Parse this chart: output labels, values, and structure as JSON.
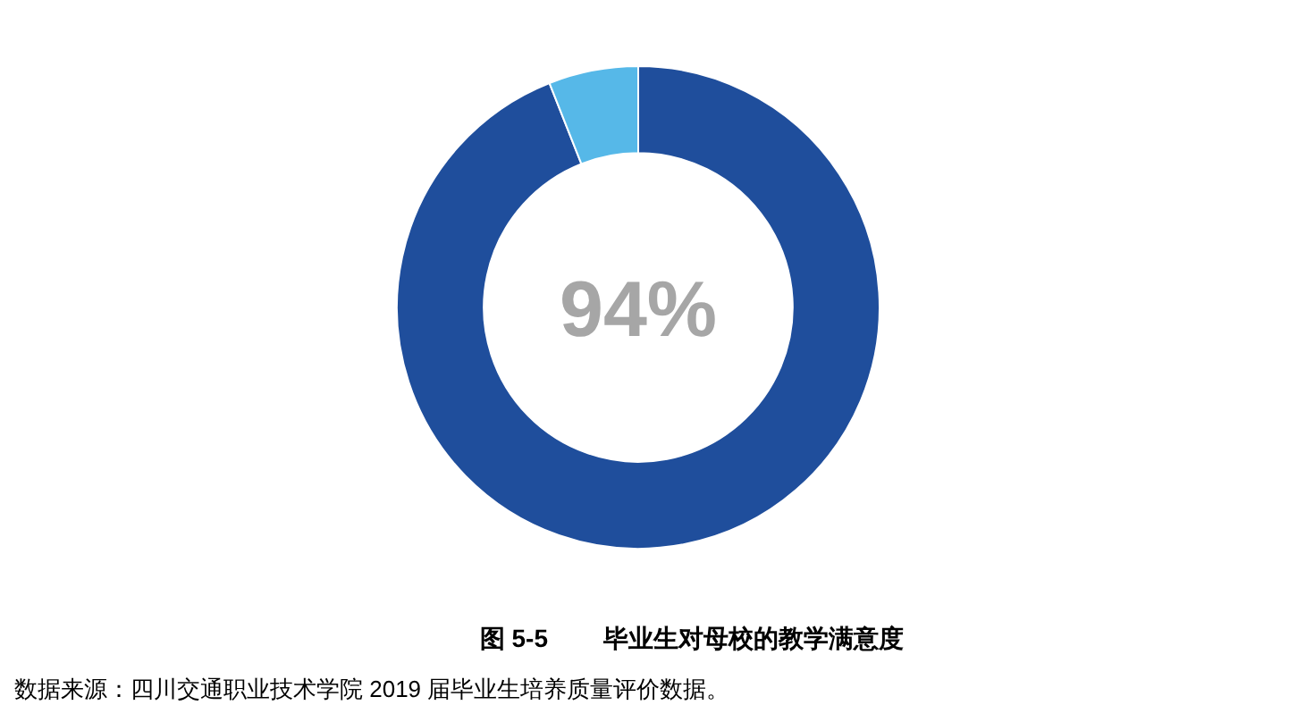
{
  "chart_data": {
    "type": "donut",
    "title": "图 5-5        毕业生对母校的教学满意度",
    "categories": [
      null,
      null
    ],
    "values": [
      94,
      6
    ],
    "colors": [
      "#1f4e9c",
      "#56b8e8"
    ],
    "value_labels": [
      "94%",
      null
    ],
    "annotations": [
      "数据来源：四川交通职业技术学院 2019 届毕业生培养质量评价数据。"
    ]
  }
}
